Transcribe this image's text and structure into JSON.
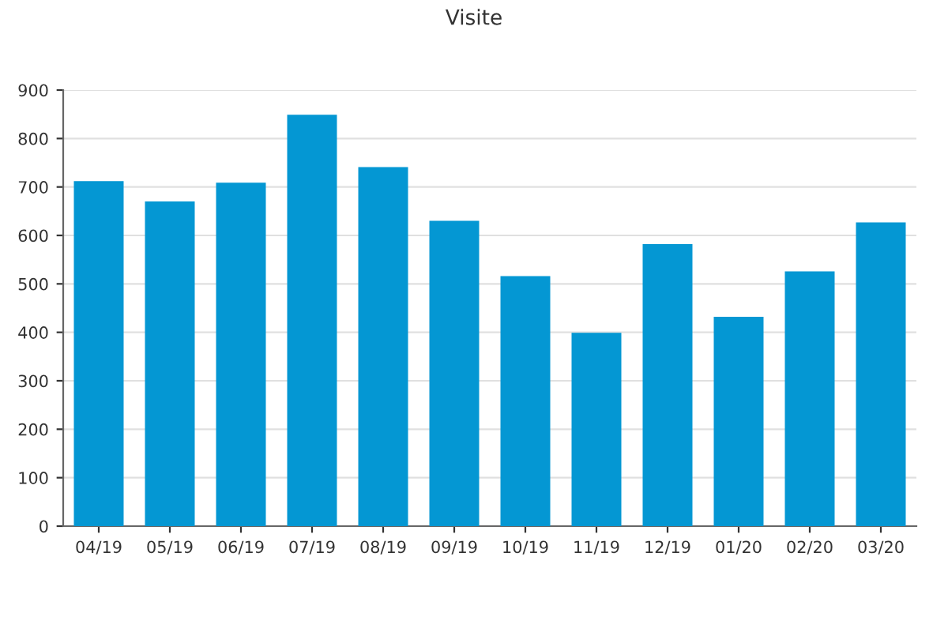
{
  "chart_data": {
    "type": "bar",
    "title": "Visite",
    "categories": [
      "04/19",
      "05/19",
      "06/19",
      "07/19",
      "08/19",
      "09/19",
      "10/19",
      "11/19",
      "12/19",
      "01/20",
      "02/20",
      "03/20"
    ],
    "values": [
      712,
      670,
      709,
      849,
      741,
      630,
      516,
      399,
      582,
      432,
      526,
      627
    ],
    "color": "#0497d3",
    "ylim": [
      0,
      900
    ],
    "yticks": [
      0,
      100,
      200,
      300,
      400,
      500,
      600,
      700,
      800,
      900
    ],
    "grid": "y"
  }
}
